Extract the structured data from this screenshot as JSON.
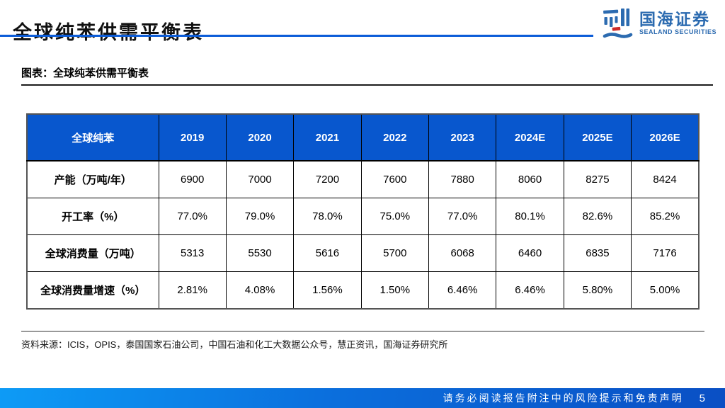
{
  "slide": {
    "title": "全球纯苯供需平衡表"
  },
  "logo": {
    "name_cn": "国海证券",
    "name_en": "SEALAND SECURITIES"
  },
  "figure": {
    "caption": "图表：全球纯苯供需平衡表",
    "source": "资料来源：ICIS，OPIS，泰国国家石油公司，中国石油和化工大数据公众号，慧正资讯，国海证券研究所"
  },
  "table": {
    "header": [
      "全球纯苯",
      "2019",
      "2020",
      "2021",
      "2022",
      "2023",
      "2024E",
      "2025E",
      "2026E"
    ],
    "rows": [
      {
        "label": "产能（万吨/年）",
        "values": [
          "6900",
          "7000",
          "7200",
          "7600",
          "7880",
          "8060",
          "8275",
          "8424"
        ]
      },
      {
        "label": "开工率（%）",
        "values": [
          "77.0%",
          "79.0%",
          "78.0%",
          "75.0%",
          "77.0%",
          "80.1%",
          "82.6%",
          "85.2%"
        ]
      },
      {
        "label": "全球消费量（万吨）",
        "values": [
          "5313",
          "5530",
          "5616",
          "5700",
          "6068",
          "6460",
          "6835",
          "7176"
        ]
      },
      {
        "label": "全球消费量增速（%）",
        "values": [
          "2.81%",
          "4.08%",
          "1.56%",
          "1.50%",
          "6.46%",
          "6.46%",
          "5.80%",
          "5.00%"
        ]
      }
    ]
  },
  "chart_data": {
    "type": "table",
    "title": "全球纯苯供需平衡表",
    "categories": [
      "2019",
      "2020",
      "2021",
      "2022",
      "2023",
      "2024E",
      "2025E",
      "2026E"
    ],
    "series": [
      {
        "name": "产能（万吨/年）",
        "values": [
          6900,
          7000,
          7200,
          7600,
          7880,
          8060,
          8275,
          8424
        ]
      },
      {
        "name": "开工率（%）",
        "values": [
          77.0,
          79.0,
          78.0,
          75.0,
          77.0,
          80.1,
          82.6,
          85.2
        ]
      },
      {
        "name": "全球消费量（万吨）",
        "values": [
          5313,
          5530,
          5616,
          5700,
          6068,
          6460,
          6835,
          7176
        ]
      },
      {
        "name": "全球消费量增速（%）",
        "values": [
          2.81,
          4.08,
          1.56,
          1.5,
          6.46,
          6.46,
          5.8,
          5.0
        ]
      }
    ]
  },
  "footer": {
    "disclaimer": "请务必阅读报告附注中的风险提示和免责声明",
    "page_number": "5"
  },
  "colors": {
    "table_header_bg": "#0857CE",
    "title_rule_blue": "#0B5CD8",
    "footer_gradient_left": "#0D9BF6",
    "footer_gradient_right": "#0A4FC4",
    "logo_blue": "#2C6BB0",
    "logo_red": "#CE2B28"
  }
}
